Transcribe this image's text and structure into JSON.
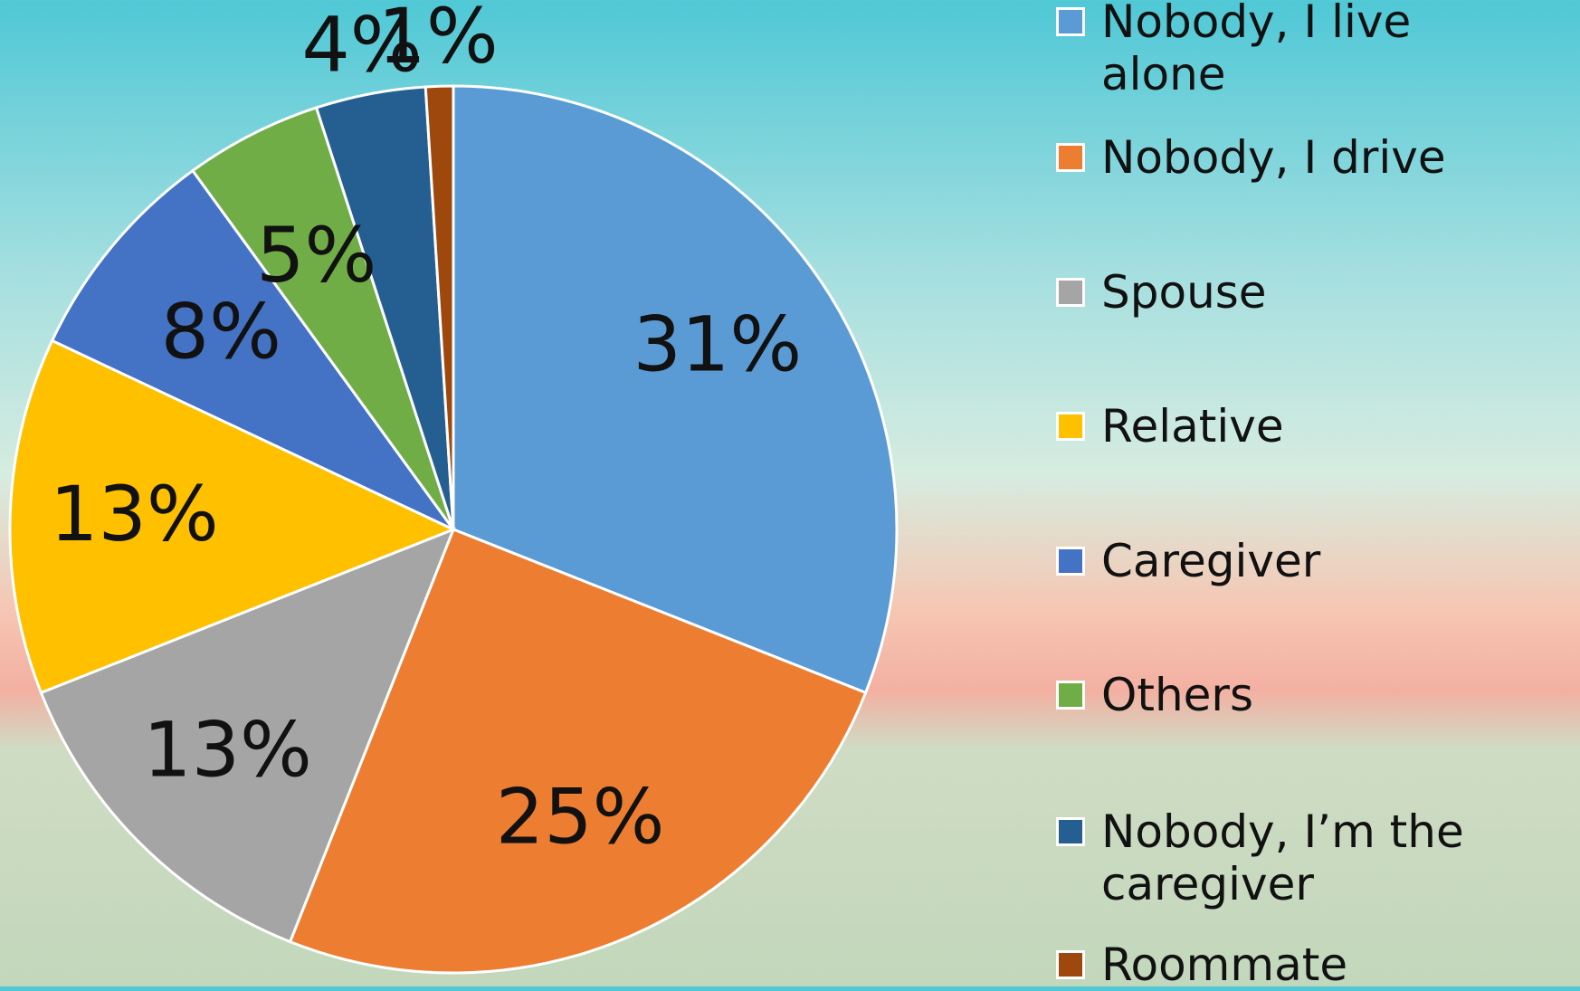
{
  "chart_data": {
    "type": "pie",
    "categories": [
      "Nobody, I live alone",
      "Nobody, I drive",
      "Spouse",
      "Relative",
      "Caregiver",
      "Others",
      "Nobody, I’m the caregiver",
      "Roommate"
    ],
    "values": [
      31,
      25,
      13,
      13,
      8,
      5,
      4,
      1
    ],
    "value_labels": [
      "31%",
      "25%",
      "13%",
      "13%",
      "8%",
      "5%",
      "4%",
      "1%"
    ],
    "colors": [
      "#5b9bd5",
      "#ed7d31",
      "#a5a5a5",
      "#ffc000",
      "#4472c4",
      "#70ad47",
      "#255e91",
      "#9e480e"
    ],
    "legend": "right"
  }
}
